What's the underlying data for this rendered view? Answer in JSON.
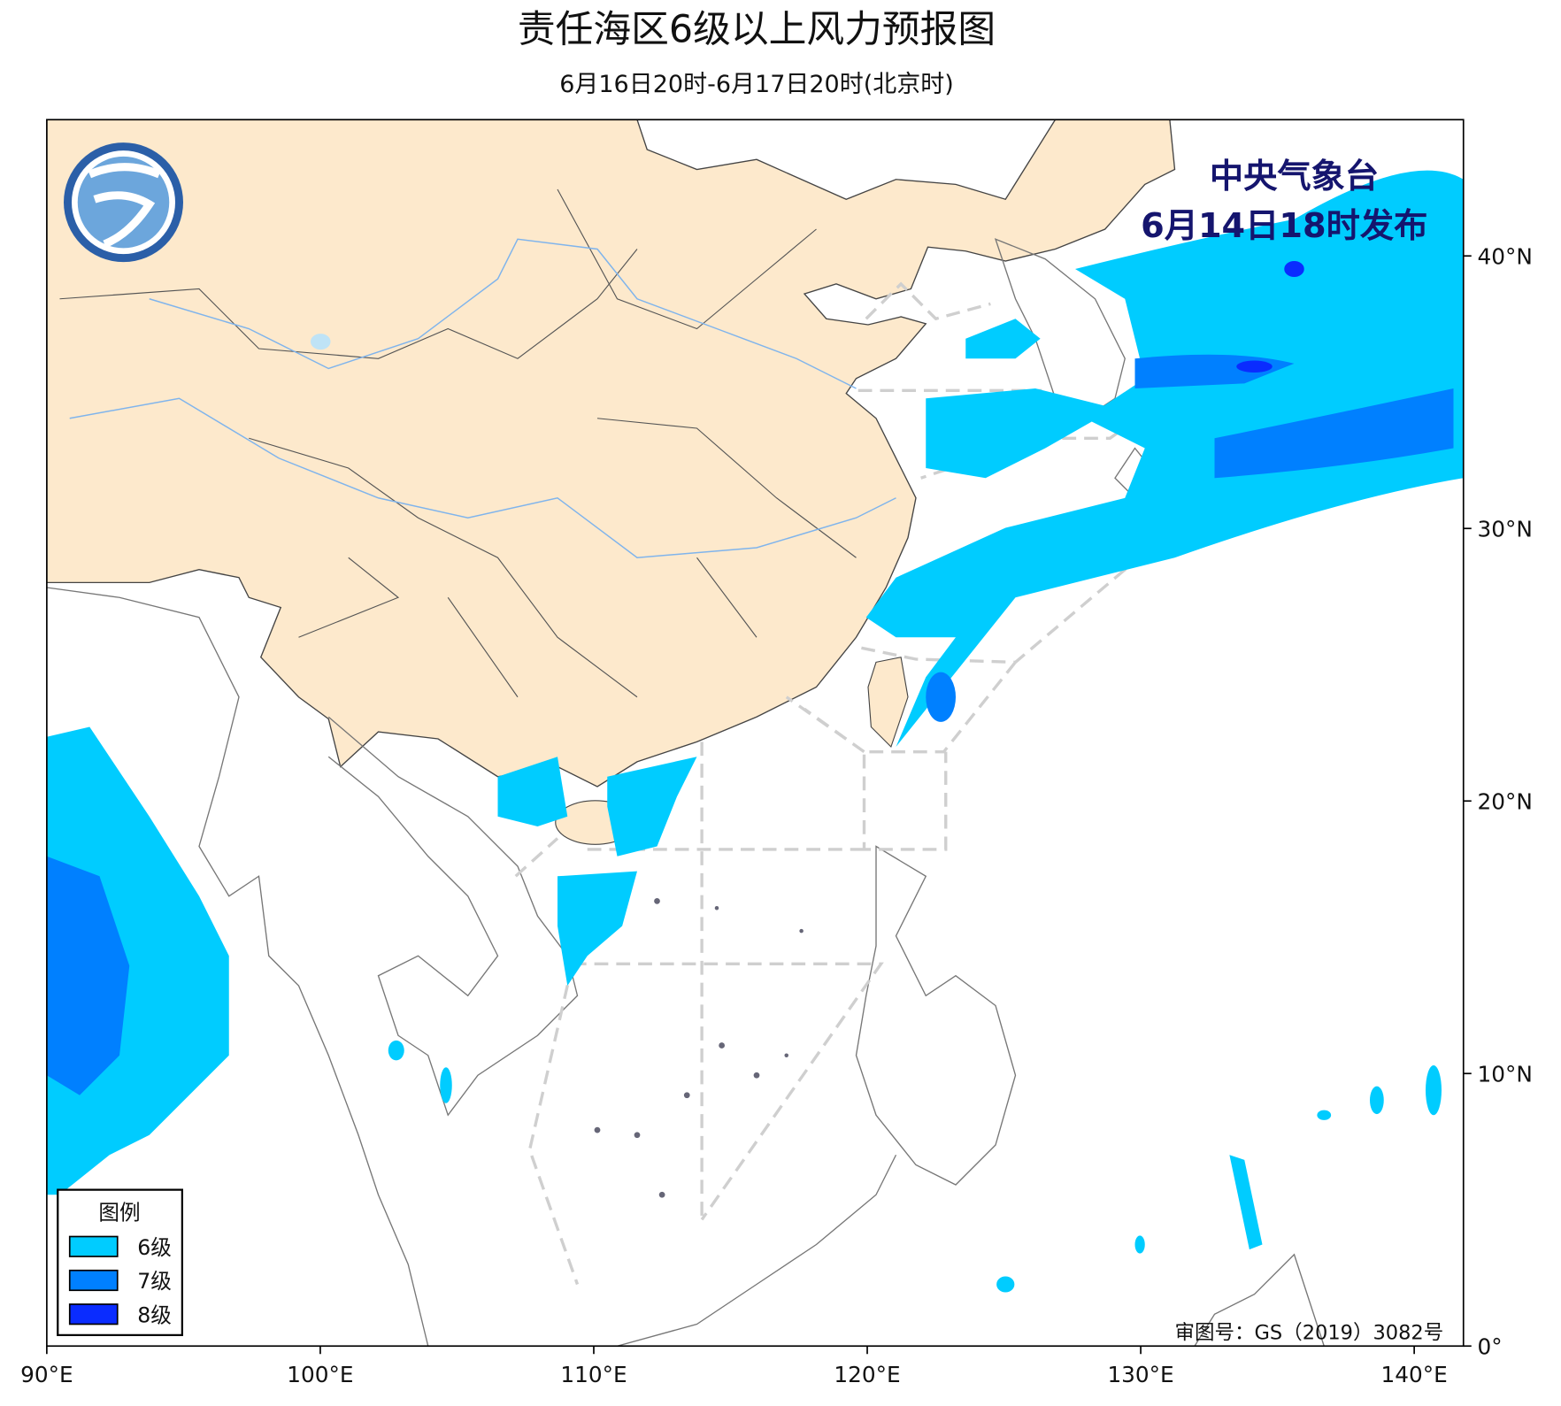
{
  "map": {
    "title": "责任海区6级以上风力预报图",
    "subtitle": "6月16日20时-6月17日20时(北京时)",
    "issuer": "中央气象台",
    "issued": "6月14日18时发布",
    "approval": "审图号：GS（2019）3082号",
    "xlim": [
      90,
      141.8
    ],
    "ylim": [
      0,
      45
    ],
    "xticks": [
      {
        "value": 90,
        "label": "90°E"
      },
      {
        "value": 100,
        "label": "100°E"
      },
      {
        "value": 110,
        "label": "110°E"
      },
      {
        "value": 120,
        "label": "120°E"
      },
      {
        "value": 130,
        "label": "130°E"
      },
      {
        "value": 140,
        "label": "140°E"
      }
    ],
    "yticks": [
      {
        "value": 0,
        "label": "0°"
      },
      {
        "value": 10,
        "label": "10°N"
      },
      {
        "value": 20,
        "label": "20°N"
      },
      {
        "value": 30,
        "label": "30°N"
      },
      {
        "value": 40,
        "label": "40°N"
      }
    ],
    "legend": {
      "title": "图例",
      "items": [
        {
          "label": "6级",
          "color": "#00ccff"
        },
        {
          "label": "7级",
          "color": "#0080ff"
        },
        {
          "label": "8级",
          "color": "#0a2cff"
        }
      ]
    }
  }
}
